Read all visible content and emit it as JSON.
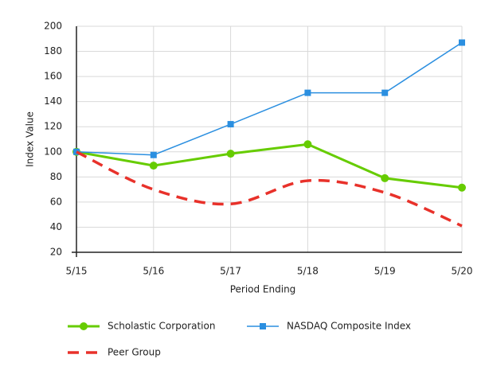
{
  "chart_data": {
    "type": "line",
    "categories": [
      "5/15",
      "5/16",
      "5/17",
      "5/18",
      "5/19",
      "5/20"
    ],
    "x_label": "Period Ending",
    "y_label": "Index Value",
    "ylim": [
      20,
      200
    ],
    "yticks": [
      20,
      40,
      60,
      80,
      100,
      120,
      140,
      160,
      180,
      200
    ],
    "grid": true,
    "series": [
      {
        "name": "Scholastic Corporation",
        "color": "#66cc00",
        "marker": "circle",
        "values": [
          100,
          89,
          98.5,
          106,
          79,
          71.5
        ]
      },
      {
        "name": "NASDAQ Composite Index",
        "color": "#2b8fe0",
        "marker": "square",
        "values": [
          100,
          97.5,
          122,
          147,
          147,
          187
        ]
      },
      {
        "name": "Peer Group",
        "color": "#e8312a",
        "dashed": true,
        "smooth": true,
        "values": [
          100,
          70,
          58.5,
          77,
          67.5,
          41
        ]
      }
    ]
  }
}
